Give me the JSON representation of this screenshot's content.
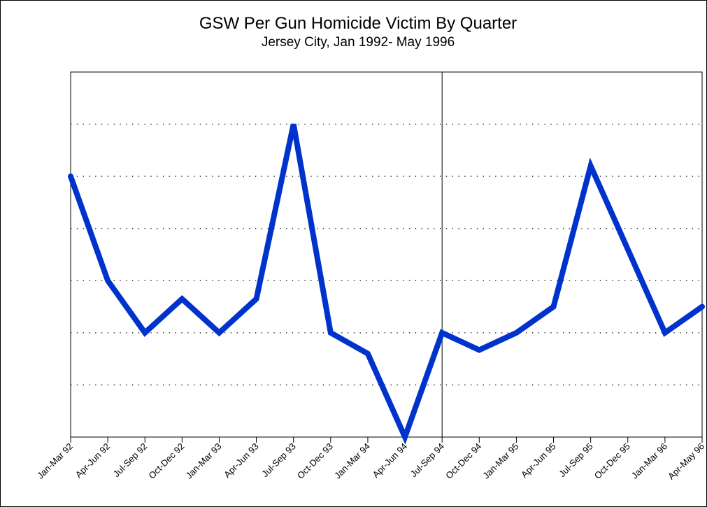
{
  "chart_data": {
    "type": "line",
    "title": "GSW Per Gun Homicide Victim By Quarter",
    "subtitle": "Jersey City, Jan 1992- May 1996",
    "categories": [
      "Jan-Mar 92",
      "Apr-Jun 92",
      "Jul-Sep 92",
      "Oct-Dec 92",
      "Jan-Mar 93",
      "Apr-Jun 93",
      "Jul-Sep 93",
      "Oct-Dec 93",
      "Jan-Mar 94",
      "Apr-Jun 94",
      "Jul-Sep 94",
      "Oct-Dec 94",
      "Jan-Mar 95",
      "Apr-Jun 95",
      "Jul-Sep 95",
      "Oct-Dec 95",
      "Jan-Mar 96",
      "Apr-May 96"
    ],
    "values": [
      5.0,
      3.0,
      2.0,
      2.65,
      2.0,
      2.65,
      6.0,
      2.0,
      1.6,
      0,
      2.0,
      1.67,
      2.0,
      2.5,
      5.2,
      3.6,
      2.0,
      2.5
    ],
    "color": "#0033cc",
    "ylim": [
      0,
      7
    ],
    "yticks": [
      1,
      2,
      3,
      4,
      5,
      6
    ],
    "grid": true,
    "reference_line": "Jul-Sep 94"
  }
}
